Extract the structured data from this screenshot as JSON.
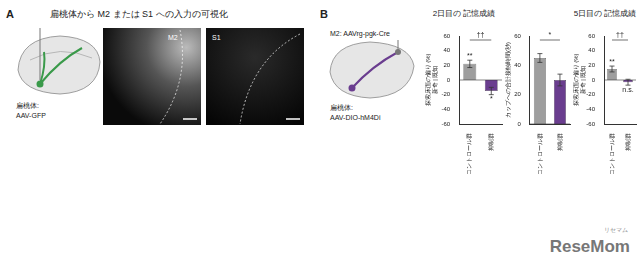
{
  "figure": {
    "panel_a": {
      "label": "A",
      "title": "扁桃体から M2 または S1 への入力の可視化",
      "injection": [
        "扁桃体:",
        "AAV-GFP"
      ],
      "images": [
        "M2",
        "S1"
      ]
    },
    "panel_b": {
      "label": "B",
      "injection_m2": "M2: AAVrg-pgk-Cre",
      "injection_amygdala": [
        "扁桃体:",
        "AAV-DIO-hM4Di"
      ]
    },
    "watermark": {
      "main": "ReseMom",
      "sub": "リセマム"
    }
  },
  "chart_data": [
    {
      "type": "bar",
      "title": "2日目の 記憶成績",
      "y_label": [
        "探索床面の偏り (%)",
        "新奇 | 既知"
      ],
      "categories": [
        "コントロール群",
        "抑制群"
      ],
      "values": [
        22,
        -15
      ],
      "errors": [
        5,
        5
      ],
      "colors": [
        "#9e9e9e",
        "#6a3d8f"
      ],
      "ylim": [
        -60,
        60
      ],
      "yticks": [
        -60,
        -40,
        -20,
        0,
        20,
        40,
        60
      ],
      "annotations": [
        "**",
        "*"
      ],
      "comparison": "††"
    },
    {
      "type": "bar",
      "y_label": "カップへの合計接触時間(秒)",
      "categories": [
        "コントロール群",
        "抑制群"
      ],
      "values": [
        45,
        30
      ],
      "errors": [
        3,
        4
      ],
      "colors": [
        "#9e9e9e",
        "#6a3d8f"
      ],
      "ylim": [
        0,
        60
      ],
      "yticks": [
        0,
        20,
        40,
        60
      ],
      "comparison": "*"
    },
    {
      "type": "bar",
      "title": "5日目の 記憶成績",
      "y_label": [
        "探索床面の偏り (%)",
        "新奇 | 既知"
      ],
      "categories": [
        "コントロール群",
        "抑制群"
      ],
      "values": [
        15,
        -3
      ],
      "errors": [
        4,
        4
      ],
      "colors": [
        "#9e9e9e",
        "#6a3d8f"
      ],
      "ylim": [
        -60,
        60
      ],
      "yticks": [
        -60,
        -40,
        -20,
        0,
        20,
        40,
        60
      ],
      "annotations": [
        "**",
        "n.s."
      ],
      "comparison": "††"
    }
  ]
}
